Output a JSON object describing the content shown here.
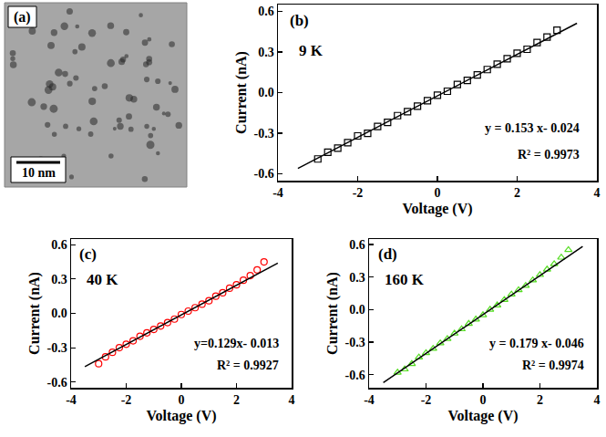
{
  "panel_a": {
    "label": "(a)",
    "scale_bar": "10 nm"
  },
  "chart_data": [
    {
      "type": "scatter",
      "panel_label": "(b)",
      "temperature": "9 K",
      "x_label": "Voltage (V)",
      "y_label": "Current (nA)",
      "annotations": [
        "y = 0.153 x- 0.024",
        "R² = 0.9973"
      ],
      "xlim": [
        -4,
        4
      ],
      "xticks": [
        -4,
        -2,
        0,
        2,
        4
      ],
      "ylim": [
        -0.65,
        0.65
      ],
      "yticks": [
        -0.6,
        -0.3,
        {
          "value": 0,
          "label": "0.0"
        },
        0.3,
        0.6
      ],
      "series": [
        {
          "type": "scatter",
          "color": "#000000",
          "marker": "square-open",
          "x": [
            -3,
            -2.75,
            -2.5,
            -2.25,
            -2,
            -1.75,
            -1.5,
            -1.25,
            -1,
            -0.75,
            -0.5,
            -0.25,
            0,
            0.25,
            0.5,
            0.75,
            1,
            1.25,
            1.5,
            1.75,
            2,
            2.25,
            2.5,
            2.75,
            3
          ],
          "values": [
            -0.49,
            -0.44,
            -0.41,
            -0.37,
            -0.32,
            -0.3,
            -0.25,
            -0.22,
            -0.17,
            -0.14,
            -0.1,
            -0.06,
            -0.02,
            0.01,
            0.06,
            0.09,
            0.13,
            0.17,
            0.21,
            0.25,
            0.29,
            0.32,
            0.37,
            0.41,
            0.46
          ]
        },
        {
          "type": "line",
          "color": "#000000",
          "line_style": "solid",
          "x": [
            -3.5,
            3.5
          ],
          "values": [
            -0.56,
            0.512
          ]
        }
      ]
    },
    {
      "type": "scatter",
      "panel_label": "(c)",
      "temperature": "40 K",
      "x_label": "Voltage (V)",
      "y_label": "Current (nA)",
      "annotations": [
        "y=0.129x- 0.013",
        "R² = 0.9927"
      ],
      "xlim": [
        -4,
        4
      ],
      "xticks": [
        -4,
        -2,
        0,
        2,
        4
      ],
      "ylim": [
        -0.65,
        0.65
      ],
      "yticks": [
        -0.6,
        -0.3,
        {
          "value": 0,
          "label": "0.0"
        },
        0.3,
        0.6
      ],
      "series": [
        {
          "type": "scatter",
          "color": "#ff0000",
          "marker": "circle-open",
          "x": [
            -3,
            -2.75,
            -2.5,
            -2.25,
            -2,
            -1.75,
            -1.5,
            -1.25,
            -1,
            -0.75,
            -0.5,
            -0.25,
            0,
            0.25,
            0.5,
            0.75,
            1,
            1.25,
            1.5,
            1.75,
            2,
            2.25,
            2.5,
            2.75,
            3
          ],
          "values": [
            -0.44,
            -0.38,
            -0.34,
            -0.3,
            -0.27,
            -0.24,
            -0.2,
            -0.17,
            -0.14,
            -0.11,
            -0.08,
            -0.05,
            -0.01,
            0.02,
            0.05,
            0.08,
            0.11,
            0.15,
            0.18,
            0.22,
            0.25,
            0.29,
            0.33,
            0.38,
            0.45
          ]
        },
        {
          "type": "line",
          "color": "#000000",
          "line_style": "solid",
          "x": [
            -3.5,
            3.5
          ],
          "values": [
            -0.465,
            0.439
          ]
        }
      ]
    },
    {
      "type": "scatter",
      "panel_label": "(d)",
      "temperature": "160 K",
      "x_label": "Voltage (V)",
      "y_label": "Current (nA)",
      "annotations": [
        "y = 0.179 x- 0.046",
        "R² = 0.9974"
      ],
      "xlim": [
        -4,
        4
      ],
      "xticks": [
        -4,
        -2,
        0,
        2,
        4
      ],
      "ylim": [
        -0.72,
        0.65
      ],
      "yticks": [
        -0.6,
        -0.3,
        {
          "value": 0,
          "label": "0.0"
        },
        0.3,
        0.6
      ],
      "series": [
        {
          "type": "scatter",
          "color": "#55dd22",
          "marker": "triangle-up-open",
          "x": [
            -3,
            -2.75,
            -2.5,
            -2.25,
            -2,
            -1.75,
            -1.5,
            -1.25,
            -1,
            -0.75,
            -0.5,
            -0.25,
            0,
            0.25,
            0.5,
            0.75,
            1,
            1.25,
            1.5,
            1.75,
            2,
            2.25,
            2.5,
            2.75,
            3
          ],
          "values": [
            -0.58,
            -0.55,
            -0.5,
            -0.44,
            -0.4,
            -0.36,
            -0.31,
            -0.27,
            -0.22,
            -0.18,
            -0.13,
            -0.09,
            -0.05,
            0.0,
            0.04,
            0.09,
            0.14,
            0.18,
            0.22,
            0.27,
            0.32,
            0.37,
            0.42,
            0.48,
            0.55
          ]
        },
        {
          "type": "line",
          "color": "#000000",
          "line_style": "solid",
          "x": [
            -3.5,
            3.5
          ],
          "values": [
            -0.673,
            0.581
          ]
        }
      ]
    }
  ]
}
